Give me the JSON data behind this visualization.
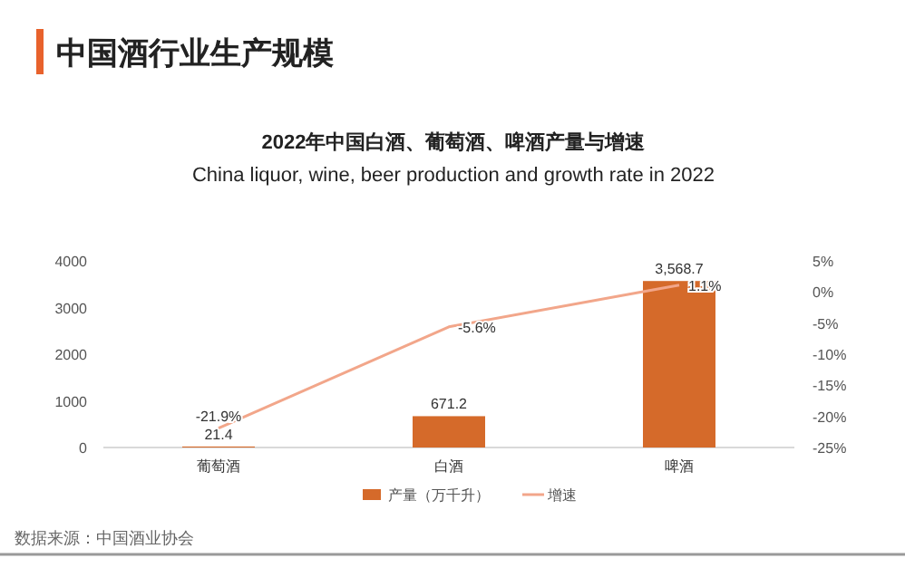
{
  "chart_data": {
    "type": "bar",
    "title": "中国酒行业生产规模",
    "subtitle": "2022年中国白酒、葡萄酒、啤酒产量与增速",
    "annotations": [
      "China liquor, wine, beer production and growth rate in 2022",
      "数据来源：中国酒业协会"
    ],
    "categories": [
      "葡萄酒",
      "白酒",
      "啤酒"
    ],
    "series": [
      {
        "name": "产量（万千升）",
        "color": "#d56a2a",
        "values": [
          21.4,
          671.2,
          3568.7
        ],
        "value_labels": [
          "21.4",
          "671.2",
          "3,568.7"
        ]
      },
      {
        "name": "增速",
        "type": "line",
        "axis": "y2",
        "color": "#f2a68a",
        "values": [
          -21.9,
          -5.6,
          1.1
        ],
        "value_labels": [
          "-21.9%",
          "-5.6%",
          "1.1%"
        ]
      }
    ],
    "ylim": [
      0,
      4000
    ],
    "yticks": [
      0,
      1000,
      2000,
      3000,
      4000
    ],
    "y2lim": [
      -25,
      5
    ],
    "y2ticks": [
      {
        "value": 5,
        "label": "5%"
      },
      {
        "value": 0,
        "label": "0%"
      },
      {
        "value": -5,
        "label": "-5%"
      },
      {
        "value": -10,
        "label": "-10%"
      },
      {
        "value": -15,
        "label": "-15%"
      },
      {
        "value": -20,
        "label": "-20%"
      },
      {
        "value": -25,
        "label": "-25%"
      }
    ],
    "legend": "bottom",
    "grid": false,
    "marker": "none"
  }
}
